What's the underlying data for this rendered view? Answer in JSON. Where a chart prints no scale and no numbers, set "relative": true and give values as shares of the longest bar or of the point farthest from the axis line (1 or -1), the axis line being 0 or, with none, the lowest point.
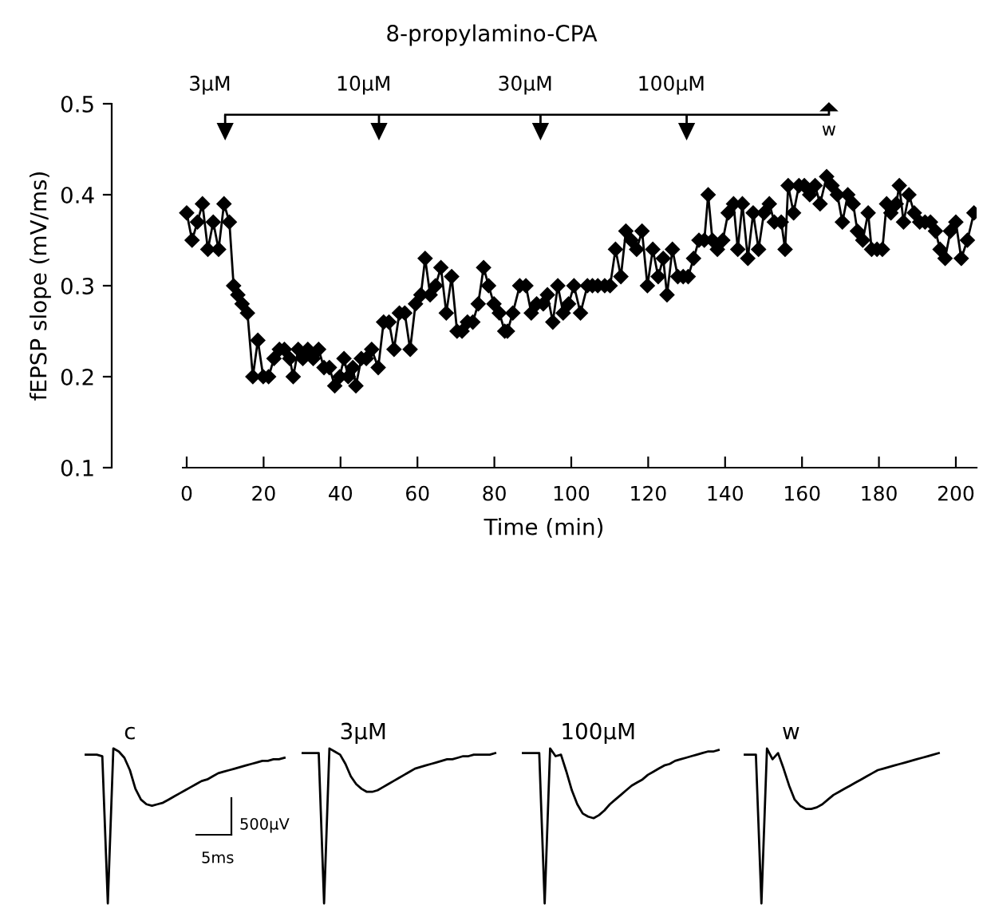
{
  "chart_data": [
    {
      "type": "line",
      "title": "8-propylamino-CPA",
      "xlabel": "Time (min)",
      "ylabel": "fEPSP slope (mV/ms)",
      "marker": "diamond",
      "line_style": "solid",
      "grid": false,
      "legend": false,
      "xlim": [
        -19.5,
        205.4
      ],
      "xticks": [
        0,
        20,
        40,
        60,
        80,
        100,
        120,
        140,
        160,
        180,
        200
      ],
      "ylim": [
        0.1,
        0.5
      ],
      "yticks": [
        0.1,
        0.2,
        0.3,
        0.4,
        0.5
      ],
      "ref_lines": [
        {
          "axis": "x",
          "value": 10,
          "label": "3μM"
        },
        {
          "axis": "x",
          "value": 50,
          "label": "10μM"
        },
        {
          "axis": "x",
          "value": 92,
          "label": "30μM"
        },
        {
          "axis": "x",
          "value": 130,
          "label": "100μM"
        },
        {
          "axis": "x",
          "value": 167,
          "label": "w"
        }
      ],
      "series": [
        {
          "color": "#000000",
          "x": [
            0,
            1.4,
            2.8,
            4.1,
            5.5,
            6.9,
            8.3,
            9.7,
            11.1,
            12.2,
            13.3,
            14.4,
            15.8,
            17.2,
            18.5,
            19.9,
            21.3,
            22.7,
            24.1,
            25.4,
            26.8,
            27.7,
            29.0,
            30.2,
            31.5,
            32.9,
            34.3,
            35.7,
            37.1,
            38.5,
            39.8,
            40.9,
            42.0,
            43.2,
            44.0,
            45.4,
            46.7,
            48.1,
            49.8,
            51.2,
            52.6,
            53.9,
            55.3,
            56.7,
            58.1,
            59.5,
            60.9,
            62.0,
            63.3,
            64.7,
            66.1,
            67.5,
            68.9,
            70.3,
            71.6,
            73.0,
            74.4,
            75.8,
            77.2,
            78.5,
            79.9,
            81.3,
            82.7,
            83.4,
            84.8,
            86.6,
            88.2,
            89.6,
            91.0,
            92.7,
            93.8,
            95.2,
            96.5,
            97.9,
            99.3,
            100.7,
            102.4,
            104.2,
            105.5,
            106.9,
            108.7,
            110.1,
            111.5,
            112.9,
            114.2,
            115.6,
            117.0,
            118.4,
            119.8,
            121.2,
            122.6,
            123.9,
            124.9,
            126.3,
            127.7,
            129.1,
            130.4,
            131.8,
            133.2,
            134.6,
            135.6,
            136.7,
            138.0,
            139.4,
            140.8,
            142.2,
            143.3,
            144.5,
            145.9,
            147.3,
            148.7,
            150.1,
            151.5,
            152.8,
            154.6,
            155.6,
            156.4,
            157.8,
            159.2,
            160.6,
            162.0,
            163.4,
            164.7,
            166.4,
            167.8,
            169.2,
            170.5,
            171.9,
            173.3,
            174.4,
            175.8,
            177.2,
            178.1,
            179.5,
            180.9,
            182.0,
            183.1,
            184.5,
            185.3,
            186.4,
            187.8,
            189.2,
            190.6,
            192.0,
            193.4,
            194.7,
            195.9,
            197.2,
            198.6,
            200.0,
            201.4,
            203.0,
            204.7
          ],
          "values": [
            0.38,
            0.35,
            0.37,
            0.39,
            0.34,
            0.37,
            0.34,
            0.39,
            0.37,
            0.3,
            0.29,
            0.28,
            0.27,
            0.2,
            0.24,
            0.2,
            0.2,
            0.22,
            0.23,
            0.23,
            0.22,
            0.2,
            0.23,
            0.22,
            0.23,
            0.22,
            0.23,
            0.21,
            0.21,
            0.19,
            0.2,
            0.22,
            0.2,
            0.21,
            0.19,
            0.22,
            0.22,
            0.23,
            0.21,
            0.26,
            0.26,
            0.23,
            0.27,
            0.27,
            0.23,
            0.28,
            0.29,
            0.33,
            0.29,
            0.3,
            0.32,
            0.27,
            0.31,
            0.25,
            0.25,
            0.26,
            0.26,
            0.28,
            0.32,
            0.3,
            0.28,
            0.27,
            0.25,
            0.25,
            0.27,
            0.3,
            0.3,
            0.27,
            0.28,
            0.28,
            0.29,
            0.26,
            0.3,
            0.27,
            0.28,
            0.3,
            0.27,
            0.3,
            0.3,
            0.3,
            0.3,
            0.3,
            0.34,
            0.31,
            0.36,
            0.35,
            0.34,
            0.36,
            0.3,
            0.34,
            0.31,
            0.33,
            0.29,
            0.34,
            0.31,
            0.31,
            0.31,
            0.33,
            0.35,
            0.35,
            0.4,
            0.35,
            0.34,
            0.35,
            0.38,
            0.39,
            0.34,
            0.39,
            0.33,
            0.38,
            0.34,
            0.38,
            0.39,
            0.37,
            0.37,
            0.34,
            0.41,
            0.38,
            0.41,
            0.41,
            0.4,
            0.41,
            0.39,
            0.42,
            0.41,
            0.4,
            0.37,
            0.4,
            0.39,
            0.36,
            0.35,
            0.38,
            0.34,
            0.34,
            0.34,
            0.39,
            0.38,
            0.39,
            0.41,
            0.37,
            0.4,
            0.38,
            0.37,
            0.37,
            0.37,
            0.36,
            0.34,
            0.33,
            0.36,
            0.37,
            0.33,
            0.35,
            0.38
          ]
        }
      ]
    },
    {
      "type": "line",
      "title": "c",
      "relative": true,
      "marker": "none",
      "line_style": "solid",
      "annotations": [
        "500μV",
        "5ms"
      ],
      "categories": [
        null,
        null,
        null,
        null,
        null,
        null,
        null,
        null,
        null,
        null,
        null,
        null,
        null,
        null,
        null,
        null,
        null,
        null,
        null,
        null,
        null,
        null,
        null,
        null,
        null,
        null,
        null,
        null,
        null,
        null,
        null,
        null,
        null,
        null,
        null,
        null,
        null
      ],
      "series": [
        {
          "color": "#000000",
          "values": [
            0.96,
            0.96,
            0.96,
            0.95,
            0,
            1.0,
            0.98,
            0.94,
            0.86,
            0.74,
            0.67,
            0.64,
            0.63,
            0.64,
            0.65,
            0.67,
            0.69,
            0.71,
            0.73,
            0.75,
            0.77,
            0.79,
            0.8,
            0.82,
            0.84,
            0.85,
            0.86,
            0.87,
            0.88,
            0.89,
            0.9,
            0.91,
            0.92,
            0.92,
            0.93,
            0.93,
            0.94
          ]
        }
      ]
    },
    {
      "type": "line",
      "title": "3μM",
      "relative": true,
      "marker": "none",
      "line_style": "solid",
      "categories": [
        null,
        null,
        null,
        null,
        null,
        null,
        null,
        null,
        null,
        null,
        null,
        null,
        null,
        null,
        null,
        null,
        null,
        null,
        null,
        null,
        null,
        null,
        null,
        null,
        null,
        null,
        null,
        null,
        null,
        null,
        null,
        null,
        null,
        null,
        null,
        null,
        null
      ],
      "series": [
        {
          "color": "#000000",
          "values": [
            0.97,
            0.97,
            0.97,
            0.97,
            0,
            1.0,
            0.98,
            0.96,
            0.9,
            0.82,
            0.77,
            0.74,
            0.72,
            0.72,
            0.73,
            0.75,
            0.77,
            0.79,
            0.81,
            0.83,
            0.85,
            0.87,
            0.88,
            0.89,
            0.9,
            0.91,
            0.92,
            0.93,
            0.93,
            0.94,
            0.95,
            0.95,
            0.96,
            0.96,
            0.96,
            0.96,
            0.97
          ]
        }
      ]
    },
    {
      "type": "line",
      "title": "100μM",
      "relative": true,
      "marker": "none",
      "line_style": "solid",
      "categories": [
        null,
        null,
        null,
        null,
        null,
        null,
        null,
        null,
        null,
        null,
        null,
        null,
        null,
        null,
        null,
        null,
        null,
        null,
        null,
        null,
        null,
        null,
        null,
        null,
        null,
        null,
        null,
        null,
        null,
        null,
        null,
        null,
        null,
        null,
        null,
        null,
        null
      ],
      "series": [
        {
          "color": "#000000",
          "values": [
            0.97,
            0.97,
            0.97,
            0.97,
            0,
            1.0,
            0.95,
            0.96,
            0.85,
            0.73,
            0.64,
            0.58,
            0.56,
            0.55,
            0.57,
            0.6,
            0.64,
            0.67,
            0.7,
            0.73,
            0.76,
            0.78,
            0.8,
            0.83,
            0.85,
            0.87,
            0.89,
            0.9,
            0.92,
            0.93,
            0.94,
            0.95,
            0.96,
            0.97,
            0.98,
            0.98,
            0.99
          ]
        }
      ]
    },
    {
      "type": "line",
      "title": "w",
      "relative": true,
      "marker": "none",
      "line_style": "solid",
      "categories": [
        null,
        null,
        null,
        null,
        null,
        null,
        null,
        null,
        null,
        null,
        null,
        null,
        null,
        null,
        null,
        null,
        null,
        null,
        null,
        null,
        null,
        null,
        null,
        null,
        null,
        null,
        null,
        null,
        null,
        null,
        null,
        null,
        null,
        null,
        null,
        null
      ],
      "series": [
        {
          "color": "#000000",
          "values": [
            0.96,
            0.96,
            0.96,
            0,
            1.0,
            0.93,
            0.97,
            0.87,
            0.76,
            0.67,
            0.63,
            0.61,
            0.61,
            0.62,
            0.64,
            0.67,
            0.7,
            0.72,
            0.74,
            0.76,
            0.78,
            0.8,
            0.82,
            0.84,
            0.86,
            0.87,
            0.88,
            0.89,
            0.9,
            0.91,
            0.92,
            0.93,
            0.94,
            0.95,
            0.96,
            0.97
          ]
        }
      ]
    }
  ]
}
